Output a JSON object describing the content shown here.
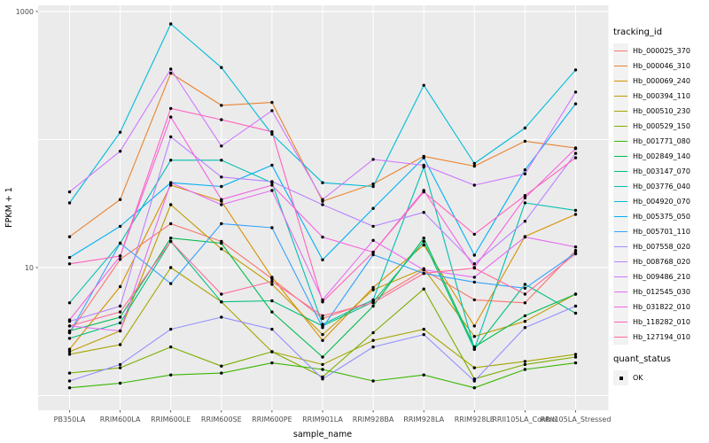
{
  "chart_data": {
    "type": "line",
    "title": "",
    "xlabel": "sample_name",
    "ylabel": "FPKM + 1",
    "y_scale": "log10",
    "y_range": [
      0.77,
      1000
    ],
    "y_major_ticks": [
      {
        "label": "1000",
        "value": 1000
      },
      {
        "label": "10",
        "value": 10
      }
    ],
    "y_minor_gridlines": [
      100,
      1
    ],
    "grid": "on",
    "legend_position": "right",
    "point_color": "#000000",
    "categories": [
      "PB350LA",
      "RRIM600LA",
      "RRIM600LE",
      "RRIM600SE",
      "RRIM600PE",
      "RRIM901LA",
      "RRIM928BA",
      "RRIM928LA",
      "RRIM928LE",
      "RRII105LA_Control",
      "RRII105LA_Stressed"
    ],
    "series": [
      {
        "name": "Hb_000025_370",
        "color": "#F8766D",
        "values": [
          3.1,
          11.6,
          22,
          16,
          8.2,
          4.0,
          5.5,
          9.6,
          5.6,
          5.3,
          13.6
        ]
      },
      {
        "name": "Hb_000046_310",
        "color": "#EA8331",
        "values": [
          17.4,
          34,
          330,
          185,
          195,
          33,
          45,
          74,
          62,
          97,
          86
        ]
      },
      {
        "name": "Hb_000069_240",
        "color": "#D89000",
        "values": [
          2.3,
          7.1,
          44,
          33,
          8.4,
          2.7,
          7.0,
          15,
          3.5,
          17.5,
          26
        ]
      },
      {
        "name": "Hb_000394_110",
        "color": "#C09B00",
        "values": [
          2.2,
          3.2,
          31,
          14,
          7.4,
          3.0,
          6.7,
          9.8,
          2.9,
          3.8,
          6.2
        ]
      },
      {
        "name": "Hb_000510_230",
        "color": "#A3A500",
        "values": [
          2.1,
          2.5,
          10,
          5.4,
          2.2,
          1.75,
          2.7,
          3.3,
          1.65,
          1.85,
          2.1
        ]
      },
      {
        "name": "Hb_000529_150",
        "color": "#7CAE00",
        "values": [
          1.5,
          1.65,
          2.4,
          1.7,
          2.2,
          1.4,
          3.1,
          6.8,
          1.35,
          1.75,
          2.0
        ]
      },
      {
        "name": "Hb_001771_080",
        "color": "#39B600",
        "values": [
          1.15,
          1.25,
          1.45,
          1.5,
          1.8,
          1.6,
          1.3,
          1.45,
          1.15,
          1.6,
          1.8
        ]
      },
      {
        "name": "Hb_002849_140",
        "color": "#00BB4E",
        "values": [
          3.2,
          4.1,
          17,
          15.5,
          4.5,
          2.0,
          5.0,
          17,
          2.4,
          4.2,
          6.2
        ]
      },
      {
        "name": "Hb_003147_070",
        "color": "#00BF7D",
        "values": [
          2.8,
          3.7,
          16,
          5.4,
          5.5,
          3.5,
          5.4,
          16,
          2.3,
          7.4,
          4.4
        ]
      },
      {
        "name": "Hb_003776_040",
        "color": "#00C0AF",
        "values": [
          5.3,
          15.5,
          69,
          69,
          46,
          3.6,
          5.6,
          61,
          2.3,
          32,
          28
        ]
      },
      {
        "name": "Hb_004920_070",
        "color": "#00BCD8",
        "values": [
          32,
          114,
          800,
          365,
          110,
          46,
          43,
          265,
          65,
          123,
          350
        ]
      },
      {
        "name": "Hb_005375_050",
        "color": "#00B0F6",
        "values": [
          12,
          21,
          46,
          43,
          63,
          11.5,
          29,
          72,
          12.5,
          58,
          190
        ]
      },
      {
        "name": "Hb_005701_110",
        "color": "#35A2FF",
        "values": [
          3.1,
          15.5,
          7.5,
          22,
          20.5,
          3.4,
          12.6,
          9.0,
          7.7,
          6.9,
          13
        ]
      },
      {
        "name": "Hb_007558_020",
        "color": "#9590FF",
        "values": [
          1.3,
          1.75,
          3.3,
          4.1,
          3.3,
          1.35,
          2.4,
          3.0,
          1.3,
          3.4,
          5.0
        ]
      },
      {
        "name": "Hb_008768_020",
        "color": "#B983FF",
        "values": [
          3.8,
          5.0,
          105,
          51,
          47,
          31,
          21,
          27,
          10.7,
          23,
          78
        ]
      },
      {
        "name": "Hb_009486_210",
        "color": "#CF78FF",
        "values": [
          39,
          81,
          355,
          89,
          168,
          34,
          70,
          63,
          44,
          54,
          235
        ]
      },
      {
        "name": "Hb_012545_030",
        "color": "#E76BF3",
        "values": [
          3.5,
          3.2,
          46,
          31,
          40,
          5.6,
          16.3,
          9.6,
          8.4,
          17.3,
          14.5
        ]
      },
      {
        "name": "Hb_031822_010",
        "color": "#F763E0",
        "values": [
          3.9,
          12.3,
          150,
          34,
          44,
          17.3,
          13.2,
          40,
          10,
          35,
          85
        ]
      },
      {
        "name": "Hb_118282_010",
        "color": "#FF62BC",
        "values": [
          10.7,
          12.3,
          175,
          143,
          115,
          5.4,
          13.2,
          39,
          18.2,
          36.5,
          72
        ]
      },
      {
        "name": "Hb_127194_010",
        "color": "#FF6A9A",
        "values": [
          3.5,
          4.5,
          16,
          6.2,
          7.8,
          4.2,
          5.3,
          9.0,
          9.9,
          6.2,
          12.8
        ]
      }
    ]
  },
  "legend": {
    "tracking_title": "tracking_id",
    "quant_title": "quant_status",
    "quant_item_label": "OK",
    "key_background": "#F2F2F2",
    "quant_marker_color": "#000000"
  },
  "panel": {
    "background": "#EBEBEB",
    "gridline_color": "#FFFFFF",
    "tick_color": "#333333",
    "tick_label_color": "#4D4D4D"
  }
}
